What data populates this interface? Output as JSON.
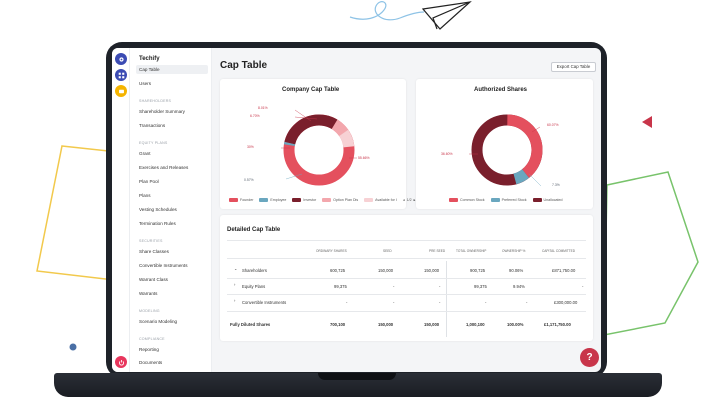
{
  "app": {
    "org_name": "Techify"
  },
  "rail": {
    "icons": [
      "logo-icon",
      "grid-icon",
      "wallet-icon",
      "power-icon"
    ]
  },
  "sidebar": {
    "items": [
      {
        "label": "Cap Table",
        "active": true
      },
      {
        "label": "Users"
      }
    ],
    "sections": [
      {
        "title": "SHAREHOLDERS",
        "items": [
          "Shareholder Summary",
          "Transactions"
        ]
      },
      {
        "title": "EQUITY PLANS",
        "items": [
          "Grant",
          "Exercises and Releases",
          "Plan Pool",
          "Plans",
          "Vesting Schedules",
          "Termination Rules"
        ]
      },
      {
        "title": "SECURITIES",
        "items": [
          "Share Classes",
          "Convertible Instruments",
          "Warrant Class",
          "Warrants"
        ]
      },
      {
        "title": "MODELING",
        "items": [
          "Scenario Modeling"
        ]
      },
      {
        "title": "COMPLIANCE",
        "items": [
          "Reporting",
          "Documents"
        ]
      }
    ]
  },
  "header": {
    "title": "Cap Table",
    "export_label": "Export Cap Table"
  },
  "company_card": {
    "title": "Company Cap Table",
    "labels": [
      "8.01%",
      "6.70%",
      "30%",
      "55.66%",
      "0.57%"
    ],
    "legend": [
      "Founder",
      "Employee",
      "Investor",
      "Option Plan Dis",
      "Available for I",
      "1/2"
    ]
  },
  "authorized_card": {
    "title": "Authorized Shares",
    "labels": [
      "60.07%",
      "36.60%",
      "7.3%"
    ],
    "legend": [
      "Common Stock",
      "Preferred Stock",
      "Unallocated"
    ]
  },
  "detail": {
    "title": "Detailed Cap Table",
    "columns": [
      "ORDINARY SHARES",
      "SEED",
      "PRE SEED",
      "TOTAL OWNERSHIP",
      "OWNERSHIP %",
      "CAPITAL COMMITTED"
    ],
    "rows": [
      {
        "name": "Shareholders",
        "cells": [
          "600,725",
          "150,000",
          "150,000",
          "900,725",
          "90.06%",
          "£871,750.00"
        ]
      },
      {
        "name": "Equity Plans",
        "cells": [
          "99,375",
          "-",
          "-",
          "99,375",
          "9.94%",
          "-"
        ]
      },
      {
        "name": "Convertible Instruments",
        "cells": [
          "-",
          "-",
          "-",
          "-",
          "-",
          "£300,000.00"
        ]
      }
    ],
    "total": {
      "name": "Fully Diluted Shares",
      "cells": [
        "700,100",
        "150,000",
        "150,000",
        "1,000,100",
        "100.00%",
        "£1,171,750.00"
      ]
    }
  },
  "help": {
    "label": "?"
  },
  "colors": {
    "accent": "#c8354a",
    "founder": "#e4505e",
    "employee": "#6aa7bf",
    "investor": "#7a1f2c",
    "option_plan": "#f3a7ad",
    "available": "#f7d1d4",
    "rail_blue": "#3b4bb3",
    "rail_yellow": "#f5b400",
    "rail_pink": "#e8365d"
  }
}
